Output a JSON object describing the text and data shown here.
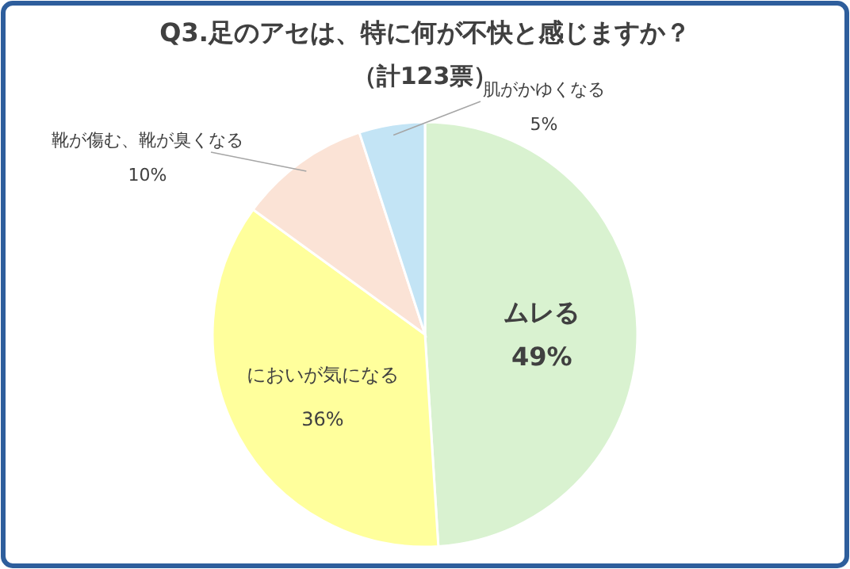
{
  "chart_data": {
    "type": "pie",
    "title": "Q3.足のアセは、特に何が不快と感じますか？",
    "subtitle": "（計123票）",
    "categories": [
      "ムレる",
      "においが気になる",
      "靴が傷む、靴が臭くなる",
      "肌がかゆくなる"
    ],
    "values": [
      49,
      36,
      10,
      5
    ],
    "colors": [
      "#d9f2d0",
      "#ffff9c",
      "#fbe3d6",
      "#c3e4f5"
    ],
    "value_labels": [
      "49%",
      "36%",
      "10%",
      "5%"
    ]
  }
}
